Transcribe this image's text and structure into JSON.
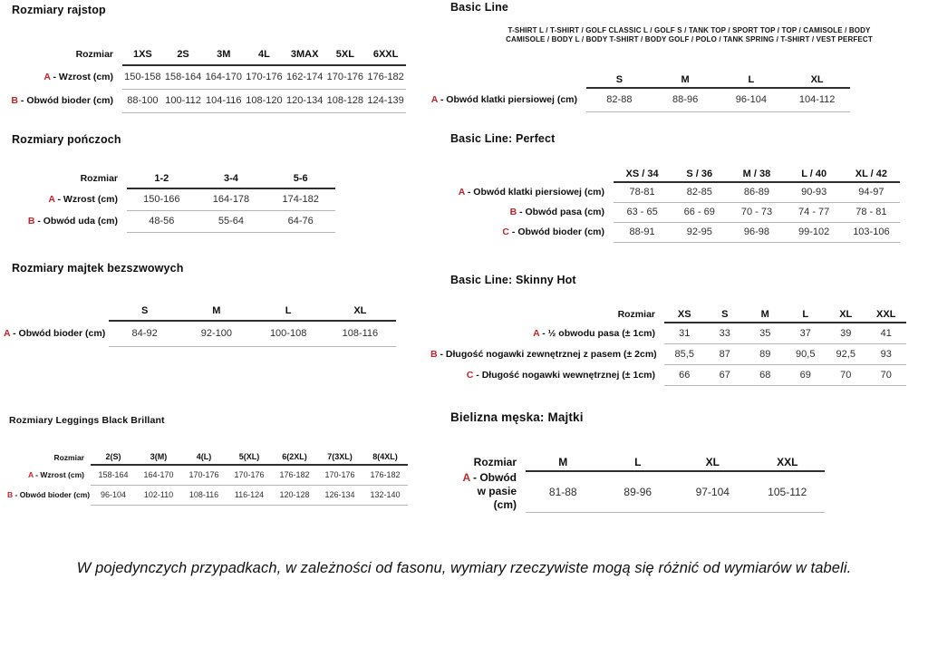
{
  "colors": {
    "accent_red": "#c3242b",
    "text": "#0f0f0f",
    "rule_dark": "#2e2e2e",
    "rule_light": "#b6b6b6"
  },
  "sections": {
    "rajstop": {
      "title": "Rozmiary rajstop",
      "table": {
        "corner": "Rozmiar",
        "sizes": [
          "1XS",
          "2S",
          "3M",
          "4L",
          "3MAX",
          "5XL",
          "6XXL"
        ],
        "rows": [
          {
            "letter": "A",
            "label": "Wzrost (cm)",
            "values": [
              "150-158",
              "158-164",
              "164-170",
              "170-176",
              "162-174",
              "170-176",
              "176-182"
            ]
          },
          {
            "letter": "B",
            "label": "Obwód bioder (cm)",
            "values": [
              "88-100",
              "100-112",
              "104-116",
              "108-120",
              "120-134",
              "108-128",
              "124-139"
            ]
          }
        ]
      }
    },
    "ponczoch": {
      "title": "Rozmiary pończoch",
      "table": {
        "corner": "Rozmiar",
        "sizes": [
          "1-2",
          "3-4",
          "5-6"
        ],
        "rows": [
          {
            "letter": "A",
            "label": "Wzrost (cm)",
            "values": [
              "150-166",
              "164-178",
              "174-182"
            ]
          },
          {
            "letter": "B",
            "label": "Obwód uda (cm)",
            "values": [
              "48-56",
              "55-64",
              "64-76"
            ]
          }
        ]
      }
    },
    "majtek_bezszwowe": {
      "title": "Rozmiary majtek bezszwowych",
      "table": {
        "corner": "",
        "sizes": [
          "S",
          "M",
          "L",
          "XL"
        ],
        "rows": [
          {
            "letter": "A",
            "label": "Obwód bioder (cm)",
            "values": [
              "84-92",
              "92-100",
              "100-108",
              "108-116"
            ]
          }
        ]
      }
    },
    "leggings": {
      "title": "Rozmiary Leggings Black Brillant",
      "table": {
        "corner": "Rozmiar",
        "sizes": [
          "2(S)",
          "3(M)",
          "4(L)",
          "5(XL)",
          "6(2XL)",
          "7(3XL)",
          "8(4XL)"
        ],
        "rows": [
          {
            "letter": "A",
            "label": "Wzrost (cm)",
            "values": [
              "158-164",
              "164-170",
              "170-176",
              "170-176",
              "176-182",
              "170-176",
              "176-182"
            ]
          },
          {
            "letter": "B",
            "label": "Obwód bioder (cm)",
            "values": [
              "96-104",
              "102-110",
              "108-116",
              "116-124",
              "120-128",
              "126-134",
              "132-140"
            ]
          }
        ]
      }
    },
    "basic_line": {
      "title": "Basic Line",
      "products_line1": "T-SHIRT L / T-SHIRT / GOLF CLASSIC L / GOLF S / TANK TOP / SPORT TOP / TOP / CAMISOLE / BODY",
      "products_line2": "CAMISOLE / BODY L / BODY T-SHIRT / BODY GOLF / POLO / TANK SPRING / T-SHIRT / VEST PERFECT",
      "table": {
        "corner": "",
        "sizes": [
          "S",
          "M",
          "L",
          "XL"
        ],
        "rows": [
          {
            "letter": "A",
            "label": "Obwód klatki piersiowej (cm)",
            "values": [
              "82-88",
              "88-96",
              "96-104",
              "104-112"
            ]
          }
        ]
      }
    },
    "perfect": {
      "title": "Basic Line: Perfect",
      "table": {
        "corner": "",
        "sizes": [
          "XS / 34",
          "S / 36",
          "M / 38",
          "L / 40",
          "XL / 42"
        ],
        "rows": [
          {
            "letter": "A",
            "label": "Obwód klatki piersiowej (cm)",
            "values": [
              "78-81",
              "82-85",
              "86-89",
              "90-93",
              "94-97"
            ]
          },
          {
            "letter": "B",
            "label": "Obwód pasa (cm)",
            "values": [
              "63 - 65",
              "66 - 69",
              "70 - 73",
              "74 - 77",
              "78 - 81"
            ]
          },
          {
            "letter": "C",
            "label": "Obwód bioder (cm)",
            "values": [
              "88-91",
              "92-95",
              "96-98",
              "99-102",
              "103-106"
            ]
          }
        ]
      }
    },
    "skinny_hot": {
      "title": "Basic Line: Skinny Hot",
      "table": {
        "corner": "Rozmiar",
        "sizes": [
          "XS",
          "S",
          "M",
          "L",
          "XL",
          "XXL"
        ],
        "rows": [
          {
            "letter": "A",
            "label": "½ obwodu pasa (± 1cm)",
            "values": [
              "31",
              "33",
              "35",
              "37",
              "39",
              "41"
            ]
          },
          {
            "letter": "B",
            "label": "Długość nogawki zewnętrznej z pasem (± 2cm)",
            "values": [
              "85,5",
              "87",
              "89",
              "90,5",
              "92,5",
              "93"
            ]
          },
          {
            "letter": "C",
            "label": "Długość nogawki wewnętrznej (± 1cm)",
            "values": [
              "66",
              "67",
              "68",
              "69",
              "70",
              "70"
            ]
          }
        ]
      }
    },
    "bielizna_meska": {
      "title": "Bielizna męska: Majtki",
      "table": {
        "corner": "Rozmiar",
        "sizes": [
          "M",
          "L",
          "XL",
          "XXL"
        ],
        "rows": [
          {
            "letter": "A",
            "label": "Obwód w pasie (cm)",
            "values": [
              "81-88",
              "89-96",
              "97-104",
              "105-112"
            ]
          }
        ]
      }
    }
  },
  "footnote": "W pojedynczych przypadkach, w zależności od fasonu, wymiary rzeczywiste mogą się różnić od wymiarów w tabeli."
}
